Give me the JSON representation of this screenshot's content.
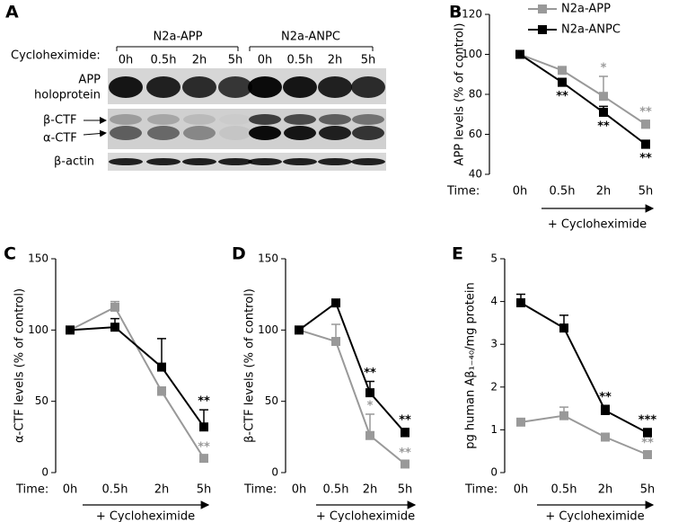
{
  "blot": {
    "panel": "A",
    "row_label": "Cycloheximide:",
    "groups": [
      {
        "name": "N2a-APP",
        "lanes": [
          "0h",
          "0.5h",
          "2h",
          "5h"
        ]
      },
      {
        "name": "N2a-ANPC",
        "lanes": [
          "0h",
          "0.5h",
          "2h",
          "5h"
        ]
      }
    ],
    "rows": [
      [
        "APP",
        "holoprotein"
      ],
      [
        "β-CTF",
        "α-CTF"
      ],
      [
        "β-actin"
      ]
    ]
  },
  "chart_data": [
    {
      "type": "line",
      "panel": "B",
      "ylabel": "APP levels (% of control)",
      "time_label": "Time:",
      "xlabel": "+ Cycloheximide",
      "categories": [
        "0h",
        "0.5h",
        "2h",
        "5h"
      ],
      "ylim": [
        40,
        120
      ],
      "yticks": [
        40,
        60,
        80,
        100,
        120
      ],
      "legend": "top-left",
      "series": [
        {
          "name": "N2a-APP",
          "color": "#999999",
          "values": [
            100,
            92,
            79,
            65
          ],
          "errors": [
            0,
            1,
            10,
            2
          ],
          "significance": [
            null,
            null,
            "*",
            "**"
          ]
        },
        {
          "name": "N2a-ANPC",
          "color": "#000000",
          "values": [
            100,
            86,
            71,
            55
          ],
          "errors": [
            0,
            2,
            3,
            2
          ],
          "significance": [
            null,
            "**",
            "**",
            "**"
          ]
        }
      ]
    },
    {
      "type": "line",
      "panel": "C",
      "ylabel": "α-CTF levels (% of control)",
      "time_label": "Time:",
      "xlabel": "+ Cycloheximide",
      "categories": [
        "0h",
        "0.5h",
        "2h",
        "5h"
      ],
      "ylim": [
        0,
        150
      ],
      "yticks": [
        0,
        50,
        100,
        150
      ],
      "series": [
        {
          "color": "#999999",
          "values": [
            100,
            116,
            57,
            10
          ],
          "errors": [
            0,
            4,
            3,
            2
          ],
          "significance": [
            null,
            null,
            null,
            "**"
          ]
        },
        {
          "color": "#000000",
          "values": [
            100,
            102,
            74,
            32
          ],
          "errors": [
            0,
            6,
            20,
            12
          ],
          "significance": [
            null,
            null,
            null,
            "**"
          ]
        }
      ]
    },
    {
      "type": "line",
      "panel": "D",
      "ylabel": "β-CTF levels (% of control)",
      "time_label": "Time:",
      "xlabel": "+ Cycloheximide",
      "categories": [
        "0h",
        "0.5h",
        "2h",
        "5h"
      ],
      "ylim": [
        0,
        150
      ],
      "yticks": [
        0,
        50,
        100,
        150
      ],
      "series": [
        {
          "color": "#999999",
          "values": [
            100,
            92,
            26,
            6
          ],
          "errors": [
            0,
            12,
            15,
            2
          ],
          "significance": [
            null,
            null,
            "*",
            "**"
          ]
        },
        {
          "color": "#000000",
          "values": [
            100,
            119,
            56,
            28
          ],
          "errors": [
            0,
            2,
            8,
            3
          ],
          "significance": [
            null,
            null,
            "**",
            "**"
          ]
        }
      ]
    },
    {
      "type": "line",
      "panel": "E",
      "ylabel": "pg human Aβ₁₋₄₀/mg protein",
      "time_label": "Time:",
      "xlabel": "+ Cycloheximide",
      "categories": [
        "0h",
        "0.5h",
        "2h",
        "5h"
      ],
      "ylim": [
        0,
        5
      ],
      "yticks": [
        0,
        1,
        2,
        3,
        4,
        5
      ],
      "series": [
        {
          "color": "#999999",
          "values": [
            1.18,
            1.33,
            0.83,
            0.42
          ],
          "errors": [
            0.05,
            0.2,
            0.05,
            0.07
          ],
          "significance": [
            null,
            null,
            null,
            "**"
          ]
        },
        {
          "color": "#000000",
          "values": [
            3.97,
            3.38,
            1.45,
            0.93
          ],
          "errors": [
            0.2,
            0.3,
            0.12,
            0.1
          ],
          "significance": [
            null,
            null,
            "**",
            "***"
          ]
        }
      ]
    }
  ]
}
